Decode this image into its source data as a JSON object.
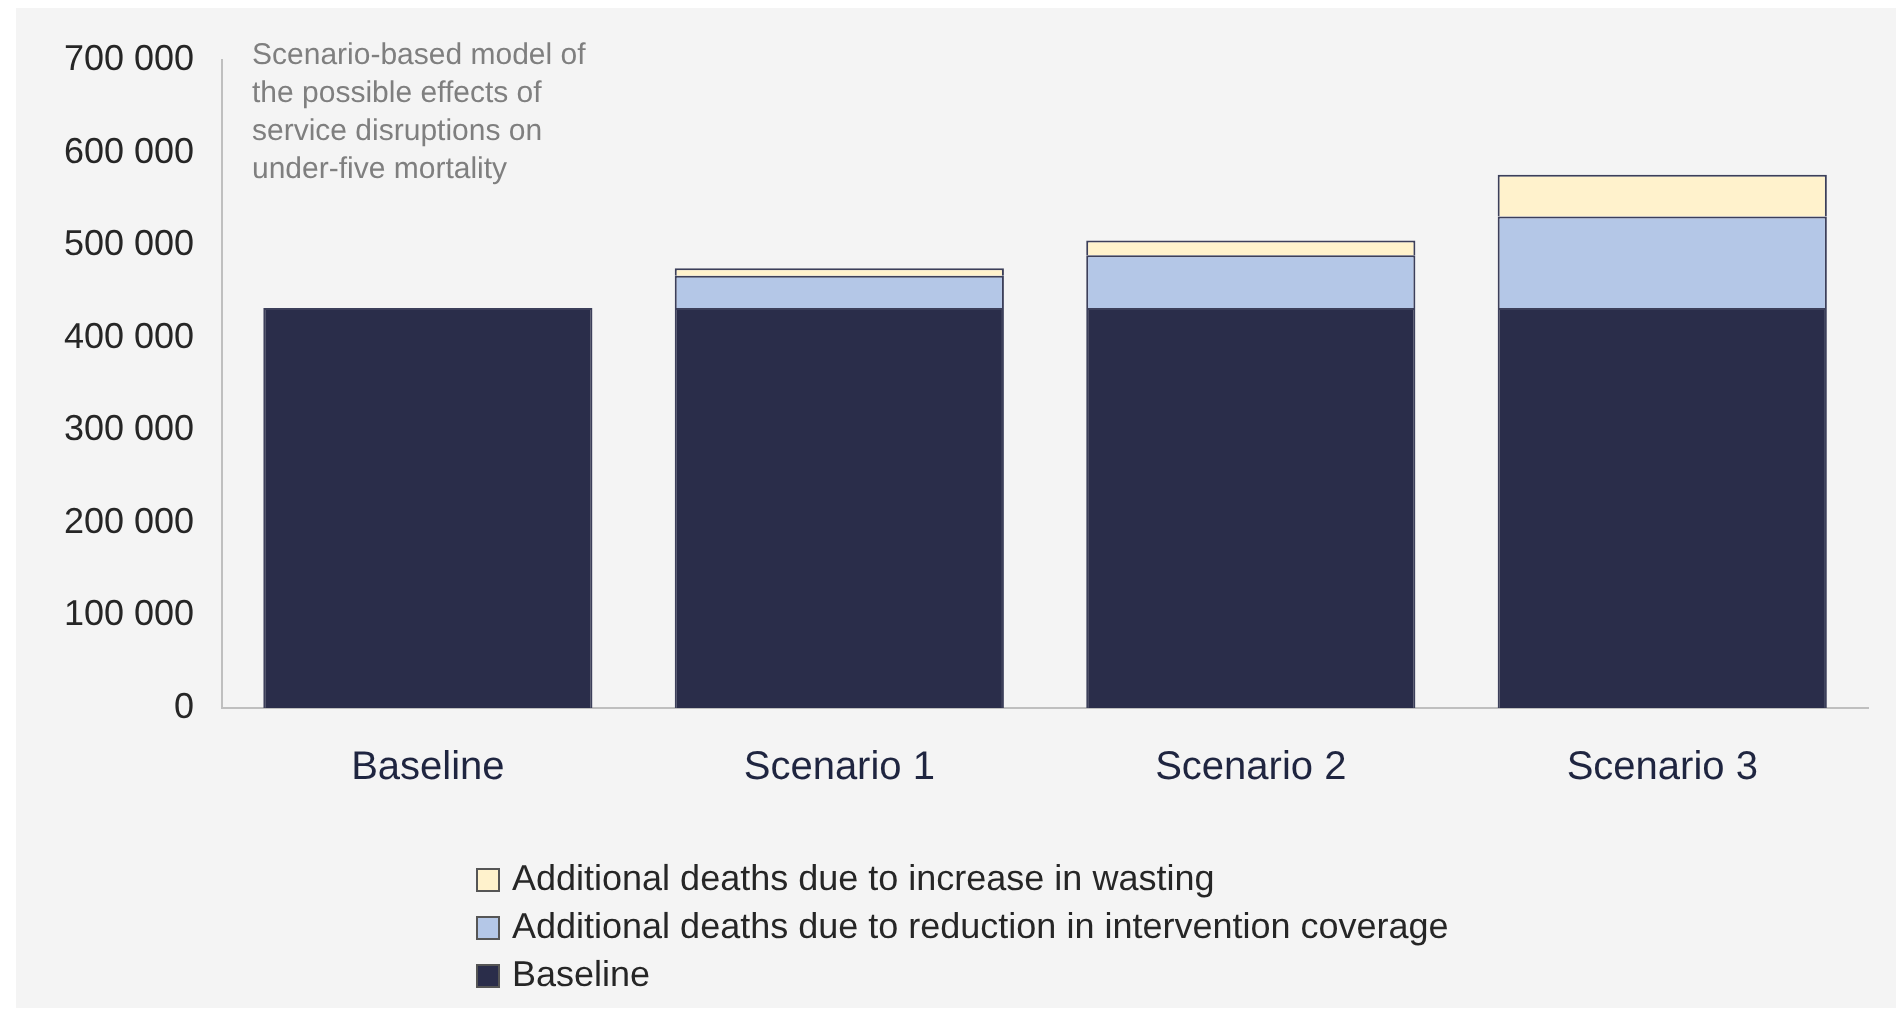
{
  "chart_data": {
    "type": "bar",
    "stacked": true,
    "categories": [
      "Baseline",
      "Scenario 1",
      "Scenario 2",
      "Scenario 3"
    ],
    "series": [
      {
        "name": "Baseline",
        "color": "#2a2d4a",
        "values": [
          432000,
          432000,
          432000,
          432000
        ]
      },
      {
        "name": "Additional deaths due to reduction in intervention coverage",
        "color": "#b4c7e7",
        "values": [
          null,
          35000,
          57000,
          99000
        ]
      },
      {
        "name": "Additional deaths due to increase in wasting",
        "color": "#fff2cc",
        "values": [
          null,
          8000,
          16000,
          45000
        ]
      }
    ],
    "ylim": [
      0,
      700000
    ],
    "yticks": [
      0,
      100000,
      200000,
      300000,
      400000,
      500000,
      600000,
      700000
    ],
    "grid": false,
    "legend": "bottom",
    "annotations": [
      "Scenario-based model of the possible effects of service disruptions on under-five mortality"
    ]
  }
}
